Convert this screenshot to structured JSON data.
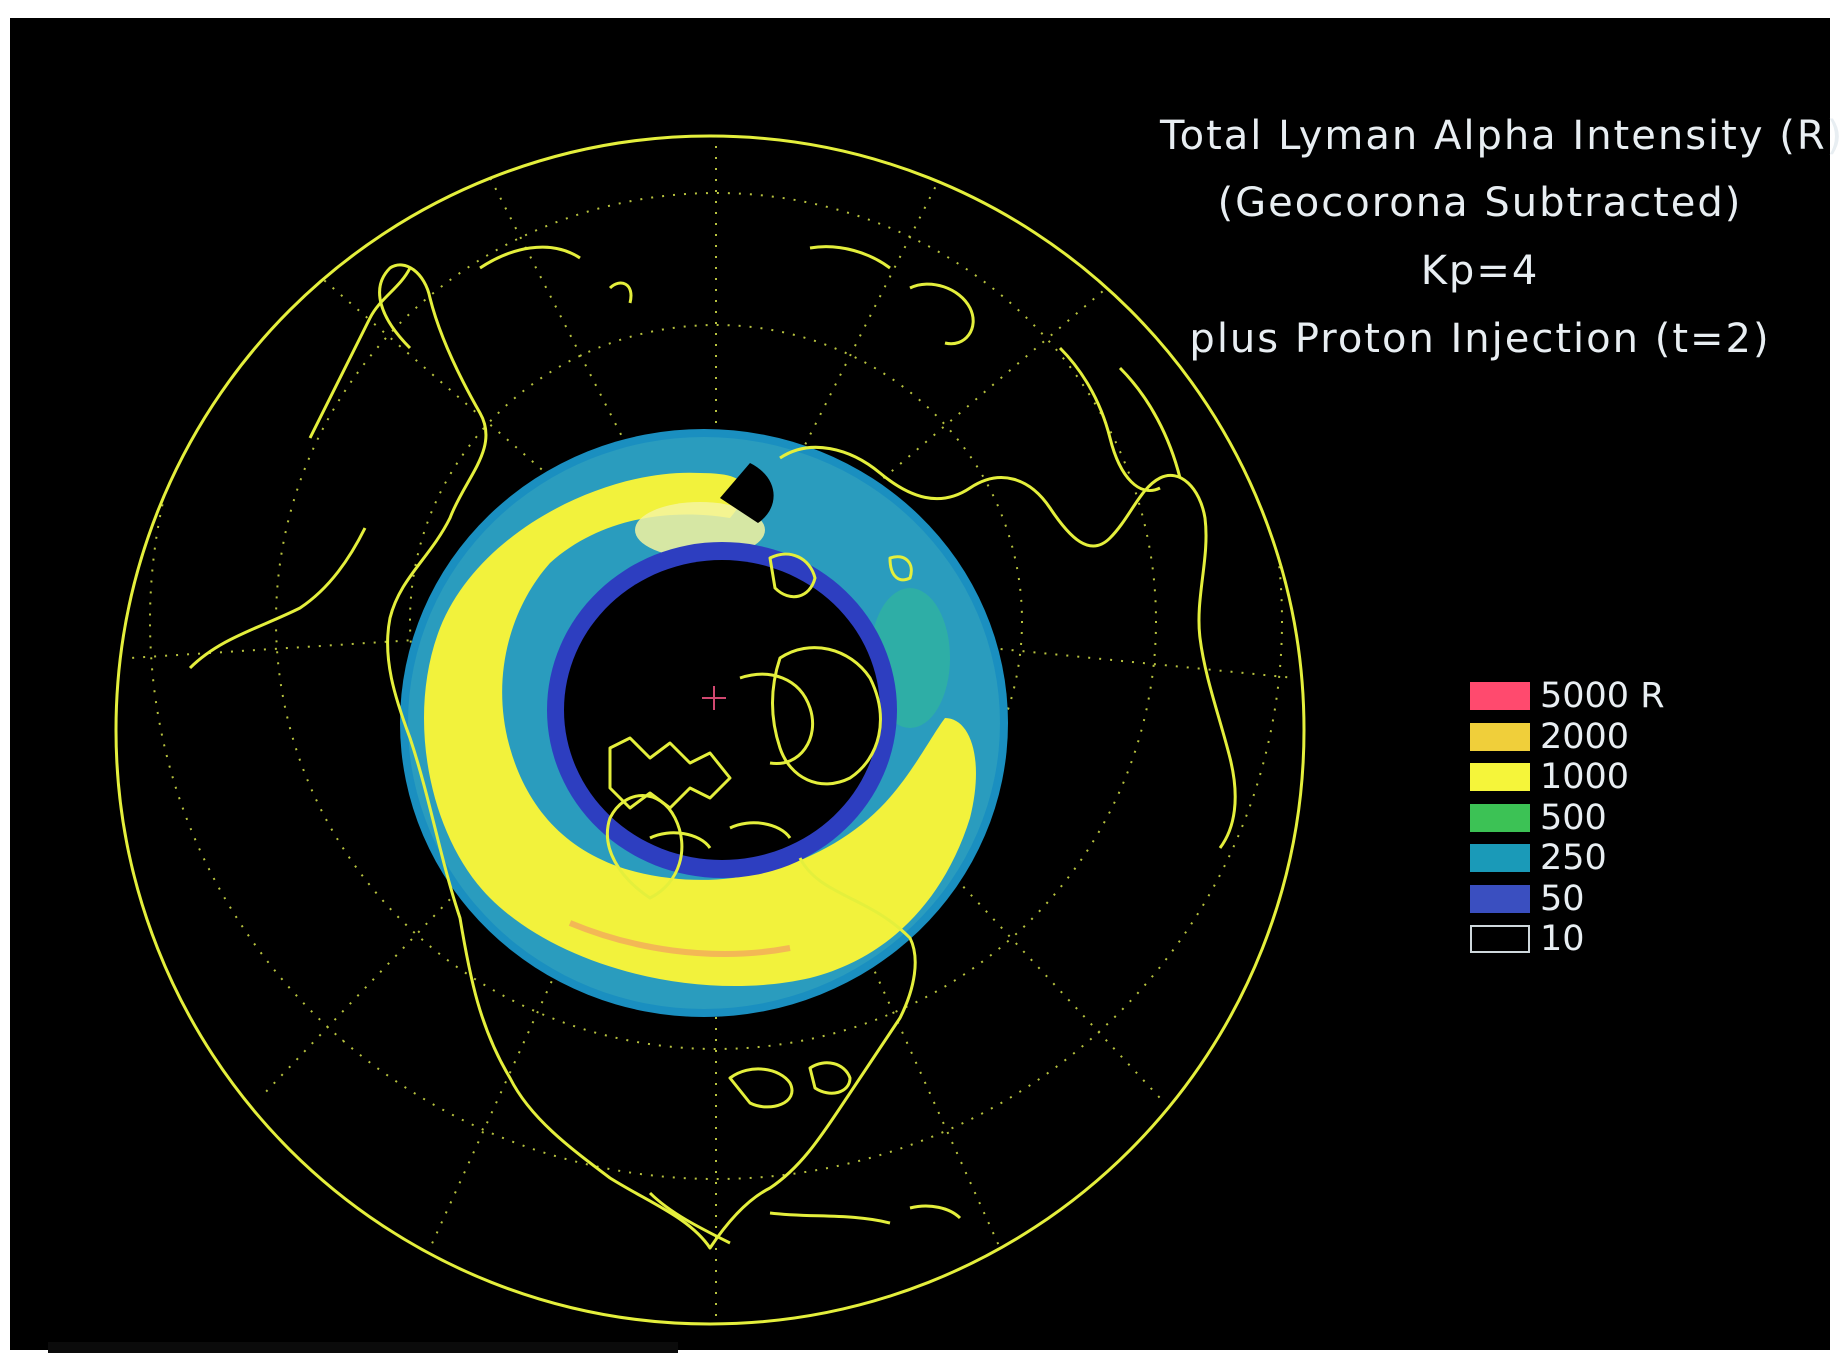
{
  "title": {
    "line1": "Total Lyman Alpha Intensity (R)",
    "line2": "(Geocorona Subtracted)",
    "line3": "Kp=4",
    "line4": "plus Proton Injection (t=2)"
  },
  "legend": {
    "items": [
      {
        "label": "5000 R",
        "color": "#ff4a6e"
      },
      {
        "label": "2000",
        "color": "#f0cf3a"
      },
      {
        "label": "1000",
        "color": "#f5f53a"
      },
      {
        "label": "500",
        "color": "#3cc255"
      },
      {
        "label": "250",
        "color": "#1a9ab8"
      },
      {
        "label": "50",
        "color": "#3a4fc0"
      },
      {
        "label": "10",
        "color": "#000000"
      }
    ]
  },
  "map": {
    "projection": "orthographic, north polar view",
    "coastline_color": "#e4ef3c",
    "graticule": "dotted",
    "background": "#000000",
    "features": [
      "oval-emission",
      "pole-marker-cross"
    ]
  },
  "colors": {
    "frame": "#000000",
    "text": "#e8eef2"
  }
}
